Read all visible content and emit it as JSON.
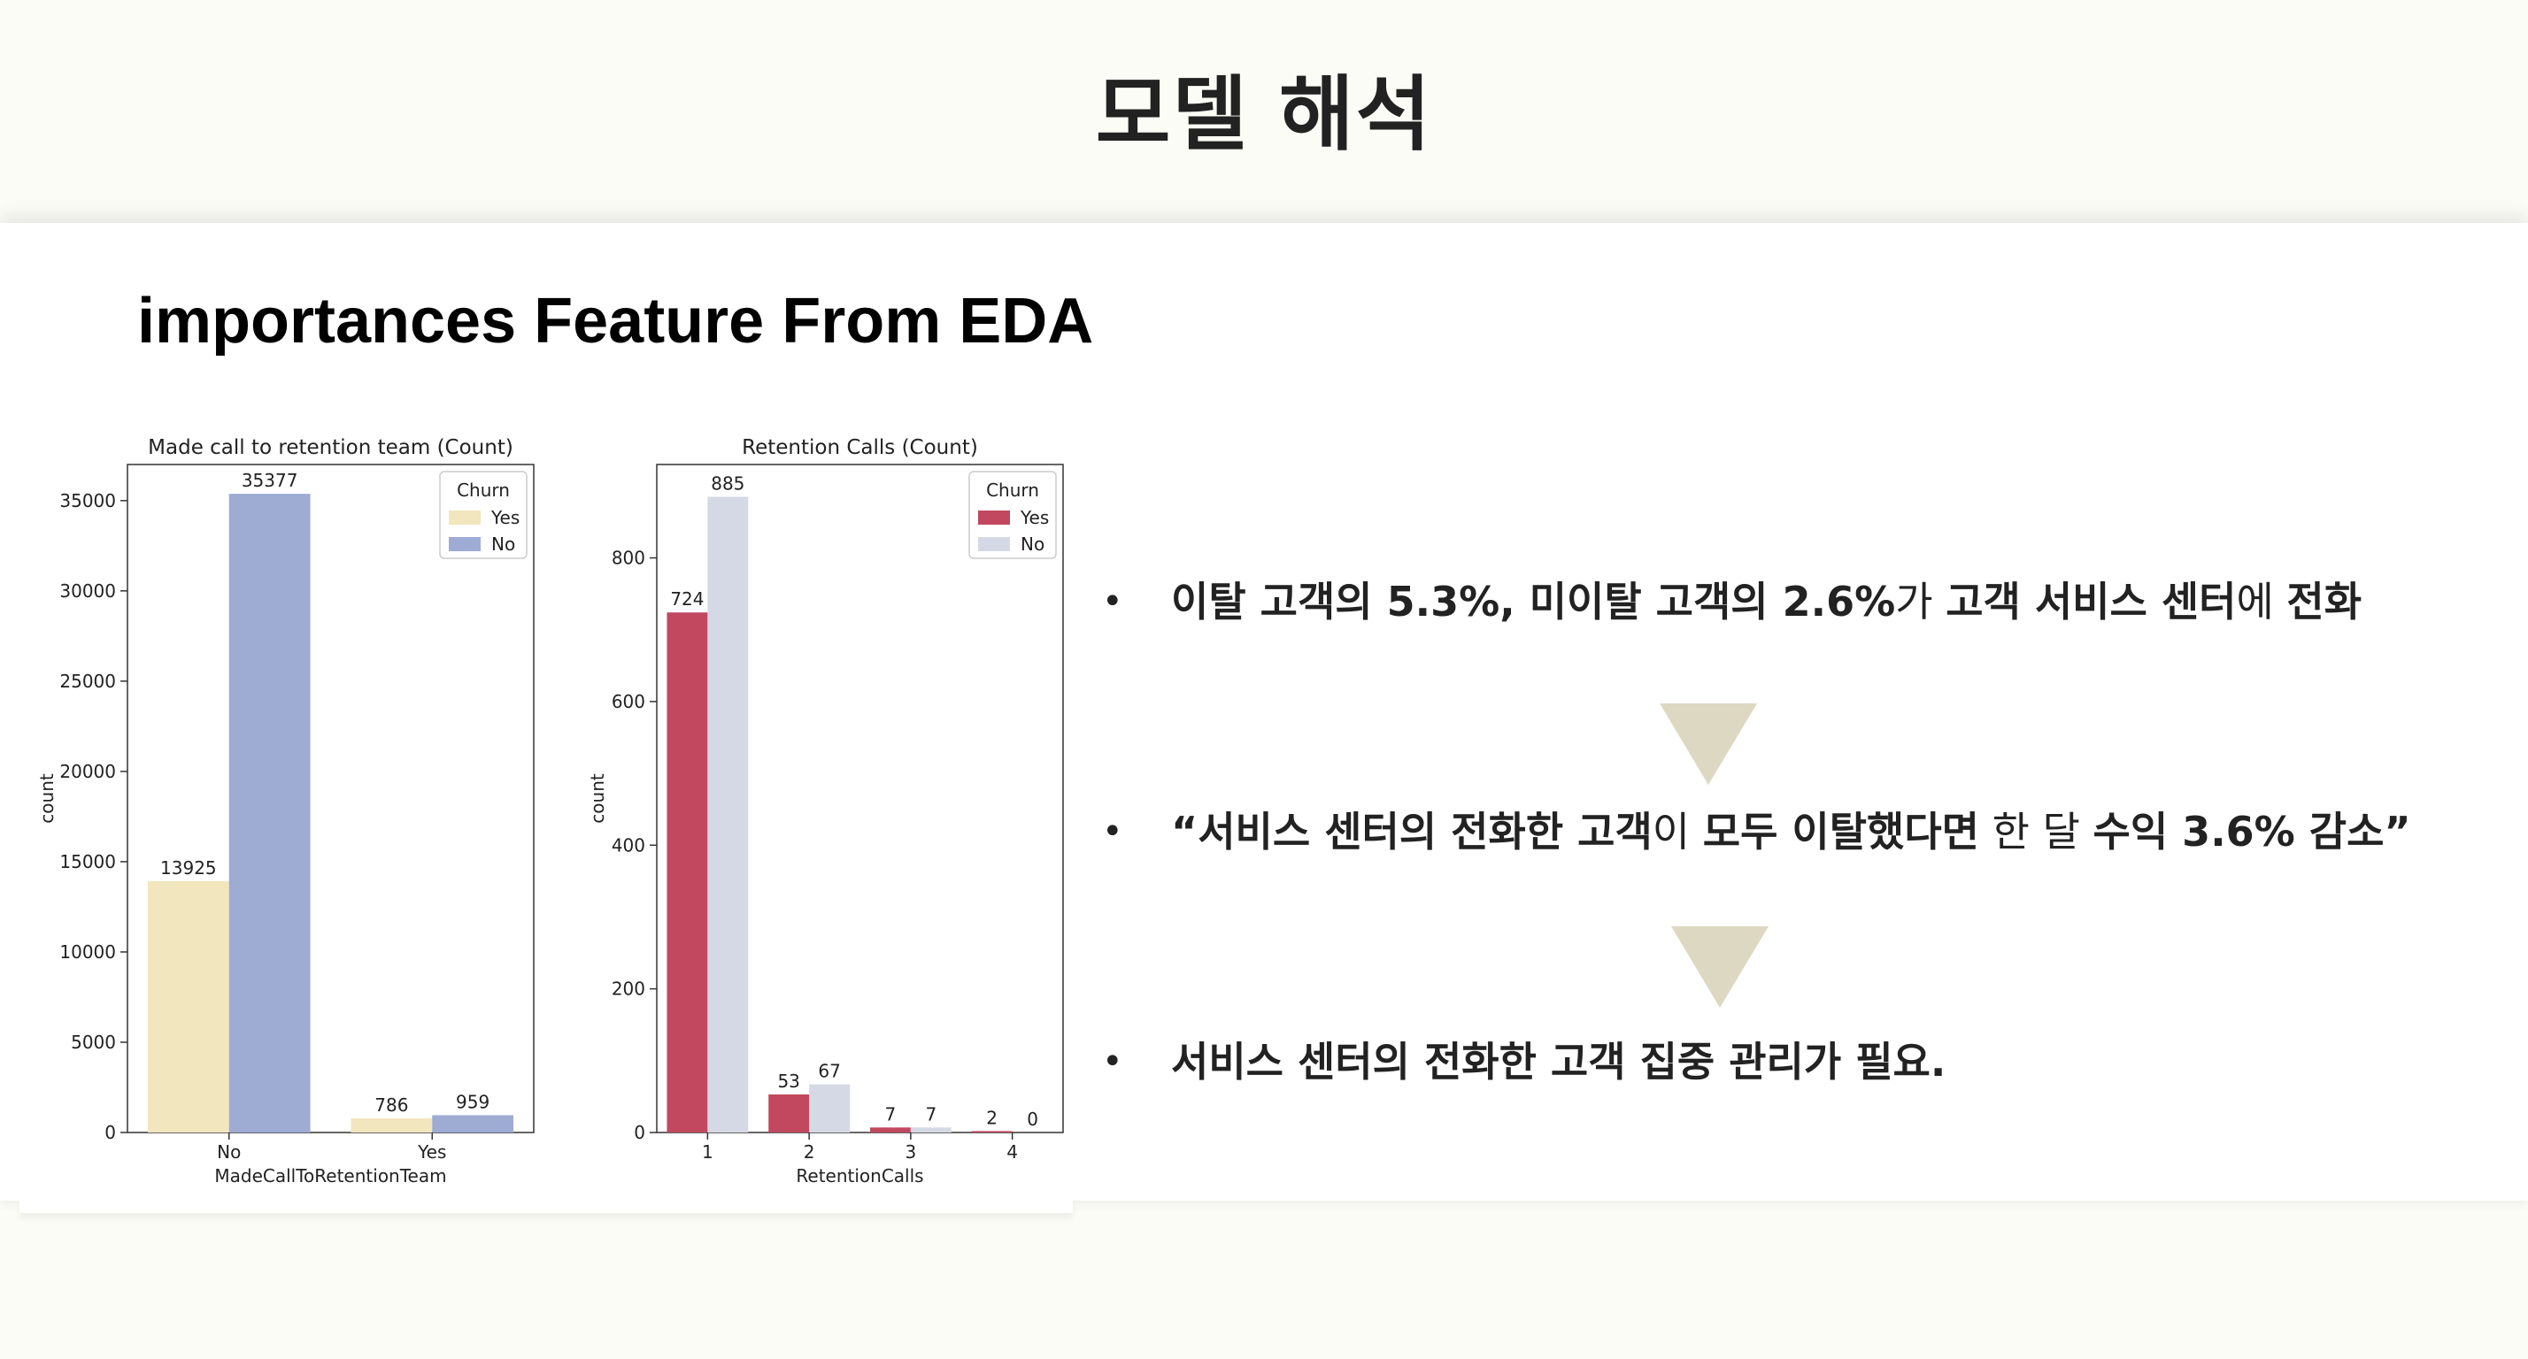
{
  "slide": {
    "title": "모델 해석",
    "section_title": "importances Feature From EDA"
  },
  "bullets": [
    {
      "segments": [
        {
          "text": "이탈 고객의 5.3%, 미이탈 고객의 2.6%",
          "bold": true
        },
        {
          "text": "가 ",
          "bold": false
        },
        {
          "text": "고객 서비스 센터",
          "bold": true
        },
        {
          "text": "에 ",
          "bold": false
        },
        {
          "text": "전화",
          "bold": true
        }
      ]
    },
    {
      "segments": [
        {
          "text": "“서비스 센터의 전화한 고객",
          "bold": true
        },
        {
          "text": "이 ",
          "bold": false
        },
        {
          "text": "모두 이탈했다면",
          "bold": true
        },
        {
          "text": " 한 달 ",
          "bold": false
        },
        {
          "text": "수익 3.6% 감소”",
          "bold": true
        }
      ]
    },
    {
      "segments": [
        {
          "text": "서비스 센터의 전화한 고객 집중 관리가 필요.",
          "bold": true
        }
      ]
    }
  ],
  "colors": {
    "arrow": "#ddd8c2",
    "background": "#fcfcf7"
  },
  "chart_data": [
    {
      "type": "bar",
      "title": "Made call to retention team (Count)",
      "xlabel": "MadeCallToRetentionTeam",
      "ylabel": "count",
      "categories": [
        "No",
        "Yes"
      ],
      "ylim": [
        0,
        37000
      ],
      "yticks": [
        0,
        5000,
        10000,
        15000,
        20000,
        25000,
        30000,
        35000
      ],
      "legend": {
        "title": "Churn",
        "placement": "top-right"
      },
      "series": [
        {
          "name": "Yes",
          "values": [
            13925,
            786
          ],
          "color": "#f1e6bd"
        },
        {
          "name": "No",
          "values": [
            35377,
            959
          ],
          "color": "#9eabd3"
        }
      ]
    },
    {
      "type": "bar",
      "title": "Retention Calls (Count)",
      "xlabel": "RetentionCalls",
      "ylabel": "count",
      "categories": [
        "1",
        "2",
        "3",
        "4"
      ],
      "ylim": [
        0,
        930
      ],
      "yticks": [
        0,
        200,
        400,
        600,
        800
      ],
      "legend": {
        "title": "Churn",
        "placement": "top-right"
      },
      "series": [
        {
          "name": "Yes",
          "values": [
            724,
            53,
            7,
            2
          ],
          "color": "#c1485f"
        },
        {
          "name": "No",
          "values": [
            885,
            67,
            7,
            0
          ],
          "color": "#d5d9e5"
        }
      ]
    }
  ]
}
